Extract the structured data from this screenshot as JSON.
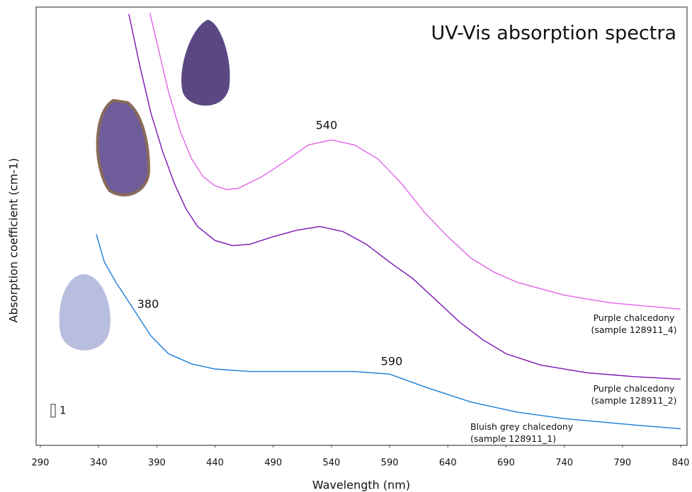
{
  "chart_data": {
    "type": "line",
    "title": "UV-Vis absorption spectra",
    "x_label": "Wavelength (nm)",
    "y_label": "Absorption coefficient (cm-1)",
    "xlim": [
      290,
      840
    ],
    "xticks": [
      290,
      340,
      390,
      440,
      490,
      540,
      590,
      640,
      690,
      740,
      790,
      840
    ],
    "ylim": [
      0,
      34
    ],
    "scale_bar": 1,
    "annotations": [
      "540",
      "380",
      "590"
    ],
    "series": [
      {
        "name": "Purple chalcedony (sample 128911_4)",
        "color": "#e163ea",
        "x": [
          384,
          390,
          400,
          410,
          420,
          430,
          440,
          450,
          460,
          480,
          500,
          520,
          540,
          560,
          580,
          600,
          620,
          640,
          660,
          680,
          700,
          740,
          780,
          840
        ],
        "values": [
          34.0,
          31.7,
          27.8,
          24.7,
          22.5,
          21.1,
          20.4,
          20.1,
          20.2,
          21.1,
          22.3,
          23.6,
          24.0,
          23.6,
          22.5,
          20.6,
          18.3,
          16.4,
          14.7,
          13.6,
          12.8,
          11.8,
          11.2,
          10.7
        ]
      },
      {
        "name": "Purple chalcedony (sample 128911_2)",
        "color": "#7a12b2",
        "x": [
          366,
          375,
          385,
          395,
          405,
          415,
          425,
          440,
          455,
          470,
          490,
          510,
          530,
          550,
          570,
          590,
          610,
          630,
          650,
          670,
          690,
          720,
          760,
          800,
          840
        ],
        "values": [
          33.9,
          30.0,
          26.1,
          23.1,
          20.6,
          18.6,
          17.2,
          16.1,
          15.7,
          15.8,
          16.4,
          16.9,
          17.2,
          16.8,
          15.8,
          14.4,
          13.1,
          11.4,
          9.7,
          8.3,
          7.2,
          6.3,
          5.7,
          5.4,
          5.2
        ]
      },
      {
        "name": "Bluish grey chalcedony (sample 128911_1)",
        "color": "#1b7bd8",
        "x": [
          338,
          345,
          355,
          365,
          375,
          385,
          400,
          420,
          440,
          470,
          520,
          560,
          590,
          620,
          660,
          700,
          740,
          800,
          840
        ],
        "values": [
          16.6,
          14.4,
          12.8,
          11.4,
          10.0,
          8.6,
          7.2,
          6.4,
          6.0,
          5.8,
          5.8,
          5.8,
          5.6,
          4.6,
          3.4,
          2.6,
          2.1,
          1.6,
          1.3
        ]
      }
    ]
  }
}
